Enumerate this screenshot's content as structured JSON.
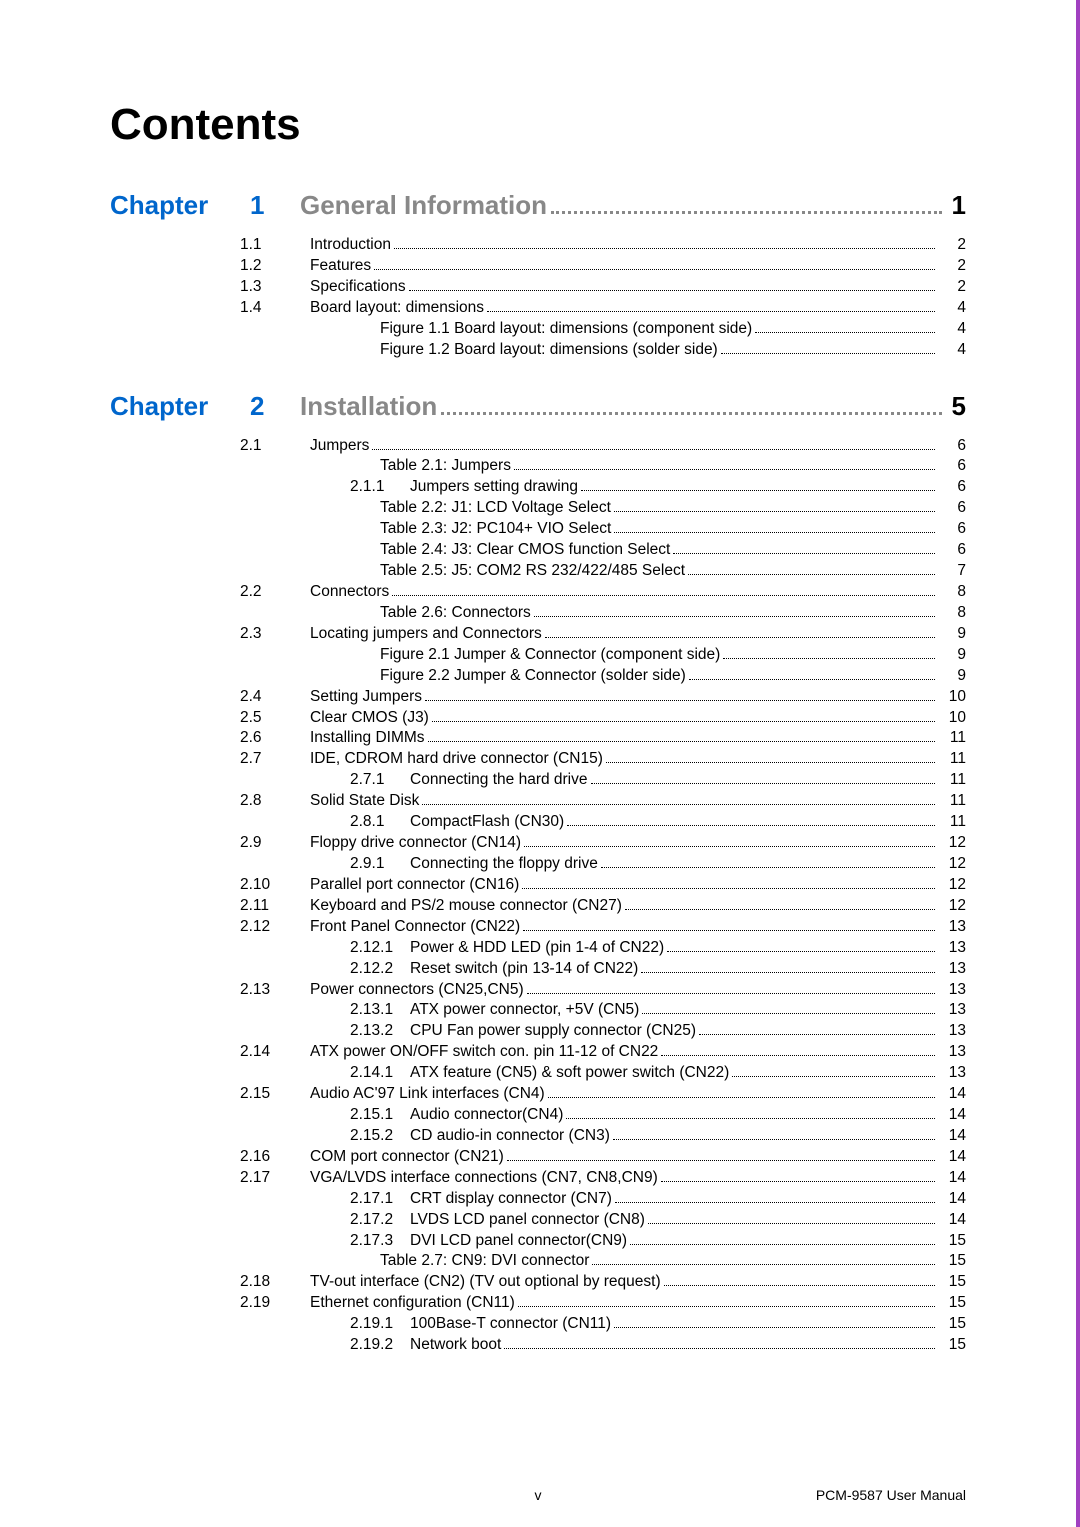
{
  "title": "Contents",
  "chapter_label": "Chapter",
  "chapters": [
    {
      "num": "1",
      "title": "General Information",
      "page": "1",
      "entries": [
        {
          "sec": "1.1",
          "title": "Introduction",
          "page": "2",
          "indent": 0
        },
        {
          "sec": "1.2",
          "title": "Features",
          "page": "2",
          "indent": 0
        },
        {
          "sec": "1.3",
          "title": "Specifications",
          "page": "2",
          "indent": 0
        },
        {
          "sec": "1.4",
          "title": "Board layout: dimensions",
          "page": "4",
          "indent": 0
        },
        {
          "sec": "",
          "title": "Figure 1.1  Board layout: dimensions (component side)",
          "page": "4",
          "indent": 2
        },
        {
          "sec": "",
          "title": "Figure 1.2  Board layout: dimensions (solder side)",
          "page": "4",
          "indent": 2
        }
      ]
    },
    {
      "num": "2",
      "title": "Installation",
      "page": "5",
      "entries": [
        {
          "sec": "2.1",
          "title": "Jumpers",
          "page": "6",
          "indent": 0
        },
        {
          "sec": "",
          "title": "Table 2.1:  Jumpers",
          "page": "6",
          "indent": 2
        },
        {
          "sec": "",
          "sub": "2.1.1",
          "title": "Jumpers setting drawing",
          "page": "6",
          "indent": 1
        },
        {
          "sec": "",
          "title": "Table 2.2:  J1:  LCD Voltage Select",
          "page": "6",
          "indent": 2
        },
        {
          "sec": "",
          "title": "Table 2.3:  J2:  PC104+ VIO Select",
          "page": "6",
          "indent": 2
        },
        {
          "sec": "",
          "title": "Table 2.4:  J3:  Clear CMOS function Select",
          "page": "6",
          "indent": 2
        },
        {
          "sec": "",
          "title": "Table 2.5:  J5:  COM2 RS 232/422/485 Select",
          "page": "7",
          "indent": 2
        },
        {
          "sec": "2.2",
          "title": "Connectors",
          "page": "8",
          "indent": 0
        },
        {
          "sec": "",
          "title": "Table 2.6:  Connectors",
          "page": "8",
          "indent": 2
        },
        {
          "sec": "2.3",
          "title": "Locating jumpers and Connectors",
          "page": "9",
          "indent": 0
        },
        {
          "sec": "",
          "title": "Figure 2.1  Jumper & Connector (component side)",
          "page": "9",
          "indent": 2
        },
        {
          "sec": "",
          "title": "Figure 2.2  Jumper & Connector (solder side)",
          "page": "9",
          "indent": 2
        },
        {
          "sec": "2.4",
          "title": "Setting Jumpers",
          "page": "10",
          "indent": 0
        },
        {
          "sec": "2.5",
          "title": "Clear CMOS (J3)",
          "page": "10",
          "indent": 0
        },
        {
          "sec": "2.6",
          "title": "Installing DIMMs",
          "page": "11",
          "indent": 0
        },
        {
          "sec": "2.7",
          "title": "IDE, CDROM hard drive connector (CN15)",
          "page": "11",
          "indent": 0
        },
        {
          "sec": "",
          "sub": "2.7.1",
          "title": "Connecting the hard drive",
          "page": "11",
          "indent": 1
        },
        {
          "sec": "2.8",
          "title": "Solid State Disk",
          "page": "11",
          "indent": 0
        },
        {
          "sec": "",
          "sub": "2.8.1",
          "title": "CompactFlash (CN30)",
          "page": "11",
          "indent": 1
        },
        {
          "sec": "2.9",
          "title": "Floppy drive connector (CN14)",
          "page": "12",
          "indent": 0
        },
        {
          "sec": "",
          "sub": "2.9.1",
          "title": "Connecting the floppy drive",
          "page": "12",
          "indent": 1
        },
        {
          "sec": "2.10",
          "title": "Parallel port connector (CN16)",
          "page": "12",
          "indent": 0
        },
        {
          "sec": "2.11",
          "title": "Keyboard and PS/2 mouse connector (CN27)",
          "page": "12",
          "indent": 0
        },
        {
          "sec": "2.12",
          "title": "Front Panel Connector (CN22)",
          "page": "13",
          "indent": 0
        },
        {
          "sec": "",
          "sub": "2.12.1",
          "title": "Power & HDD LED (pin 1-4 of CN22)",
          "page": "13",
          "indent": 1
        },
        {
          "sec": "",
          "sub": "2.12.2",
          "title": "Reset switch (pin 13-14 of CN22)",
          "page": "13",
          "indent": 1
        },
        {
          "sec": "2.13",
          "title": "Power connectors (CN25,CN5)",
          "page": "13",
          "indent": 0
        },
        {
          "sec": "",
          "sub": "2.13.1",
          "title": "ATX power connector, +5V (CN5)",
          "page": "13",
          "indent": 1
        },
        {
          "sec": "",
          "sub": "2.13.2",
          "title": "CPU Fan power supply connector (CN25)",
          "page": "13",
          "indent": 1
        },
        {
          "sec": "2.14",
          "title": "ATX power ON/OFF switch con. pin 11-12 of CN22",
          "page": "13",
          "indent": 0
        },
        {
          "sec": "",
          "sub": "2.14.1",
          "title": "ATX feature (CN5) & soft power switch (CN22)",
          "page": "13",
          "indent": 1
        },
        {
          "sec": "2.15",
          "title": "Audio AC'97 Link interfaces (CN4)",
          "page": "14",
          "indent": 0
        },
        {
          "sec": "",
          "sub": "2.15.1",
          "title": "Audio connector(CN4)",
          "page": "14",
          "indent": 1
        },
        {
          "sec": "",
          "sub": "2.15.2",
          "title": "CD audio-in connector (CN3)",
          "page": "14",
          "indent": 1
        },
        {
          "sec": "2.16",
          "title": "COM port connector (CN21)",
          "page": "14",
          "indent": 0
        },
        {
          "sec": "2.17",
          "title": "VGA/LVDS interface connections (CN7, CN8,CN9)",
          "page": "14",
          "indent": 0
        },
        {
          "sec": "",
          "sub": "2.17.1",
          "title": "CRT display connector (CN7)",
          "page": "14",
          "indent": 1
        },
        {
          "sec": "",
          "sub": "2.17.2",
          "title": "LVDS LCD panel connector (CN8)",
          "page": "14",
          "indent": 1
        },
        {
          "sec": "",
          "sub": "2.17.3",
          "title": "DVI LCD panel connector(CN9)",
          "page": "15",
          "indent": 1
        },
        {
          "sec": "",
          "title": "Table 2.7:  CN9:  DVI connector",
          "page": "15",
          "indent": 2
        },
        {
          "sec": "2.18",
          "title": "TV-out interface  (CN2) (TV out optional by request)",
          "page": "15",
          "indent": 0
        },
        {
          "sec": "2.19",
          "title": "Ethernet configuration (CN11)",
          "page": "15",
          "indent": 0
        },
        {
          "sec": "",
          "sub": "2.19.1",
          "title": "100Base-T connector (CN11)",
          "page": "15",
          "indent": 1
        },
        {
          "sec": "",
          "sub": "2.19.2",
          "title": "Network boot",
          "page": "15",
          "indent": 1
        }
      ]
    }
  ],
  "footer": {
    "center": "v",
    "right": "PCM-9587 User Manual"
  },
  "colors": {
    "chapter_blue": "#0066cc",
    "chapter_gray": "#888888",
    "border_purple": "#a040c0"
  }
}
